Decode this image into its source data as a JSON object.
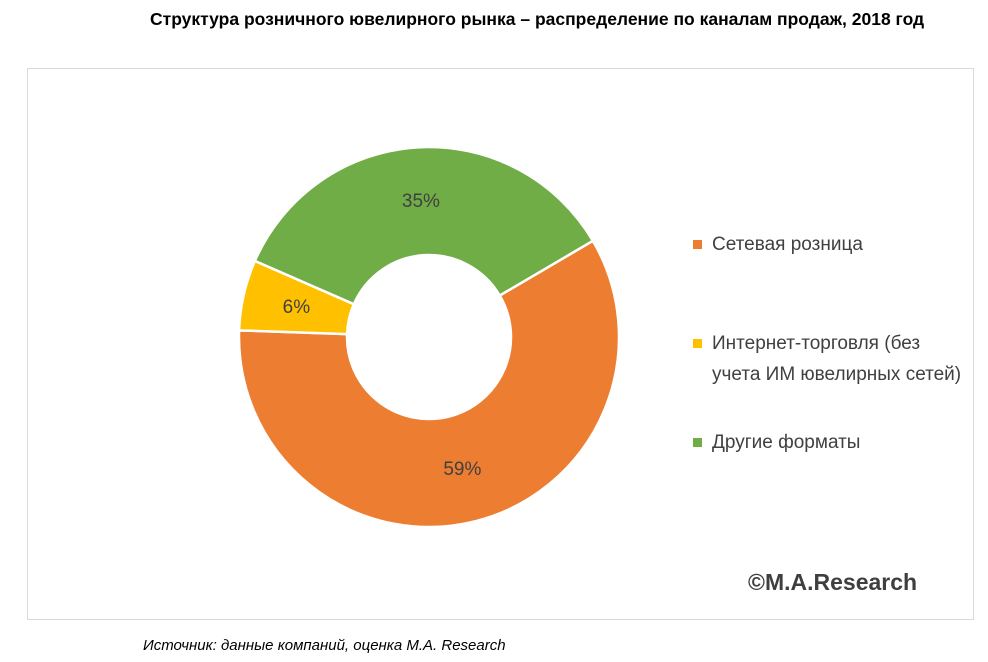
{
  "title": "Структура розничного ювелирного рынка – распределение по каналам продаж, 2018 год",
  "copyright": "©M.A.Research",
  "source": "Источник: данные компаний, оценка M.A. Research",
  "chart_data": {
    "type": "pie",
    "donut": true,
    "categories": [
      "Сетевая розница",
      "Интернет-торговля (без учета ИМ ювелирных сетей)",
      "Другие форматы"
    ],
    "values": [
      59,
      6,
      35
    ],
    "labels": [
      "59%",
      "6%",
      "35%"
    ],
    "colors": [
      "#ED7D31",
      "#FFC000",
      "#70AD47"
    ],
    "legend_position": "right"
  }
}
